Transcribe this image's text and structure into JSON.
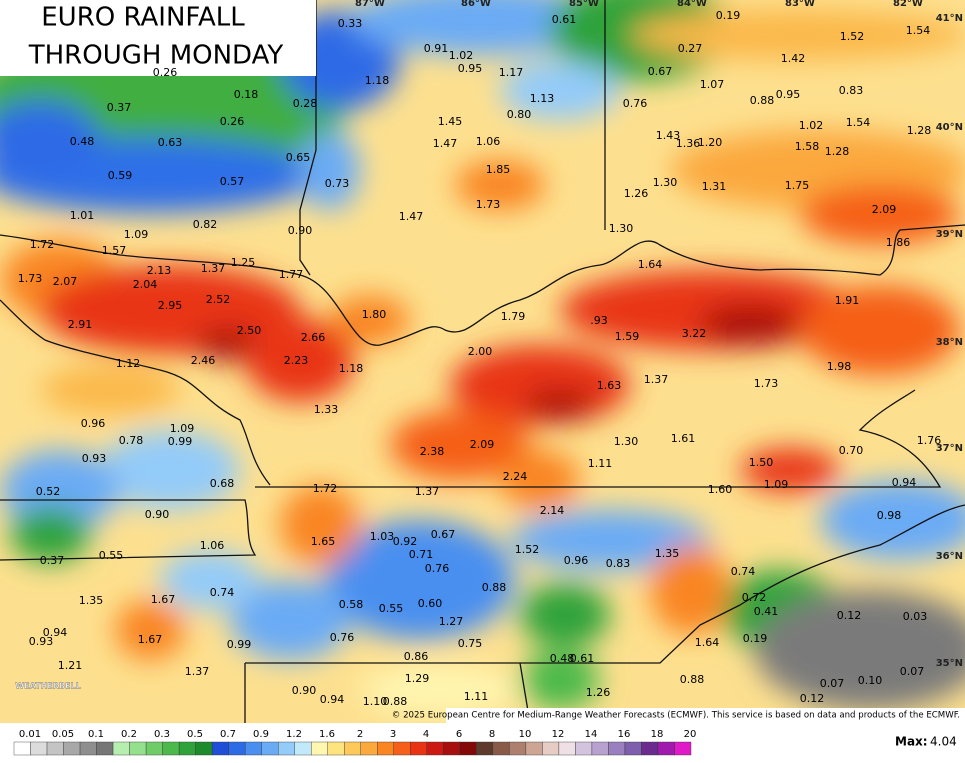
{
  "title_lines": [
    "EURO RAINFALL",
    "THROUGH MONDAY"
  ],
  "longitudes": [
    "87°W",
    "86°W",
    "85°W",
    "84°W",
    "83°W",
    "82°W"
  ],
  "latitudes": [
    "41°N",
    "40°N",
    "39°N",
    "38°N",
    "37°N",
    "36°N",
    "35°N"
  ],
  "point_values": [
    "0.33",
    "0.61",
    "0.19",
    "0.91",
    "1.02",
    "0.95",
    "1.17",
    "0.27",
    "1.52",
    "1.54",
    "1.42",
    "0.67",
    "1.07",
    "0.88",
    "0.95",
    "0.83",
    "0.26",
    "1.18",
    "0.37",
    "0.18",
    "0.28",
    "0.26",
    "1.13",
    "0.76",
    "0.80",
    "1.45",
    "1.02",
    "1.54",
    "1.28",
    "0.48",
    "0.63",
    "1.47",
    "1.06",
    "1.43",
    "1.36",
    "1.20",
    "1.58",
    "1.28",
    "0.65",
    "0.59",
    "0.57",
    "0.73",
    "1.85",
    "1.30",
    "1.31",
    "1.26",
    "1.75",
    "1.73",
    "1.01",
    "1.47",
    "2.09",
    "0.82",
    "0.90",
    "1.09",
    "1.30",
    "1.72",
    "1.57",
    "1.86",
    "1.25",
    "1.37",
    "1.64",
    "1.77",
    "2.13",
    "1.73",
    "2.07",
    "2.04",
    "2.52",
    "2.95",
    "1.80",
    "1.79",
    ".93",
    "1.91",
    "2.91",
    "2.50",
    "2.66",
    "1.59",
    "3.22",
    "2.00",
    "2.46",
    "2.23",
    "1.12",
    "1.18",
    "1.98",
    "1.63",
    "1.37",
    "1.73",
    "1.33",
    "0.96",
    "1.09",
    "0.78",
    "0.99",
    "1.30",
    "1.61",
    "1.76",
    "2.38",
    "2.09",
    "0.70",
    "0.93",
    "1.11",
    "1.50",
    "2.24",
    "0.68",
    "1.09",
    "0.94",
    "1.72",
    "1.37",
    "1.60",
    "0.52",
    "0.90",
    "2.14",
    "0.98",
    "1.03",
    "0.92",
    "0.67",
    "1.65",
    "1.06",
    "0.71",
    "1.52",
    "0.55",
    "0.37",
    "0.96",
    "0.83",
    "1.35",
    "0.76",
    "0.74",
    "0.88",
    "0.74",
    "1.35",
    "1.67",
    "0.72",
    "0.58",
    "0.55",
    "0.60",
    "0.41",
    "0.12",
    "0.03",
    "1.27",
    "0.94",
    "1.67",
    "0.76",
    "0.75",
    "0.19",
    "1.64",
    "0.93",
    "0.99",
    "0.86",
    "0.48",
    "0.61",
    "1.21",
    "1.37",
    "0.07",
    "1.29",
    "0.88",
    "0.07",
    "0.10",
    "0.90",
    "1.26",
    "0.94",
    "1.10",
    "0.88",
    "1.11",
    "0.12"
  ],
  "legend": {
    "labels": [
      "0.01",
      "0.05",
      "0.1",
      "0.2",
      "0.3",
      "0.5",
      "0.7",
      "0.9",
      "1.2",
      "1.6",
      "2",
      "3",
      "4",
      "6",
      "8",
      "10",
      "12",
      "14",
      "16",
      "18",
      "20"
    ],
    "colors": [
      "#ffffff",
      "#dcdcdc",
      "#c4c4c4",
      "#a8a8a8",
      "#8e8e8e",
      "#767676",
      "#b6eeb0",
      "#94e08c",
      "#6fcd68",
      "#4cb94a",
      "#2fa33a",
      "#1d8a2c",
      "#1f4fd6",
      "#2d6be6",
      "#4a8ff0",
      "#6aabf5",
      "#93cbf9",
      "#c2e8fc",
      "#fff6b0",
      "#fde47e",
      "#fcc95a",
      "#fba83c",
      "#f98523",
      "#f55f19",
      "#e83412",
      "#cc1a12",
      "#a80e0e",
      "#830808",
      "#5e3a2c",
      "#8a5a48",
      "#ad7f6e",
      "#cda595",
      "#e6ccc2",
      "#efe0e6",
      "#d4c3df",
      "#b7a1cf",
      "#9a80bf",
      "#7e5fae",
      "#6a2a8e",
      "#a01aae",
      "#e01ac8"
    ]
  },
  "logo": "WEATHERBELL",
  "credit": "© 2025 European Centre for Medium-Range Weather Forecasts (ECMWF). This service is based on data and products of the ECMWF.",
  "max": {
    "label": "Max:",
    "value": "4.04"
  }
}
